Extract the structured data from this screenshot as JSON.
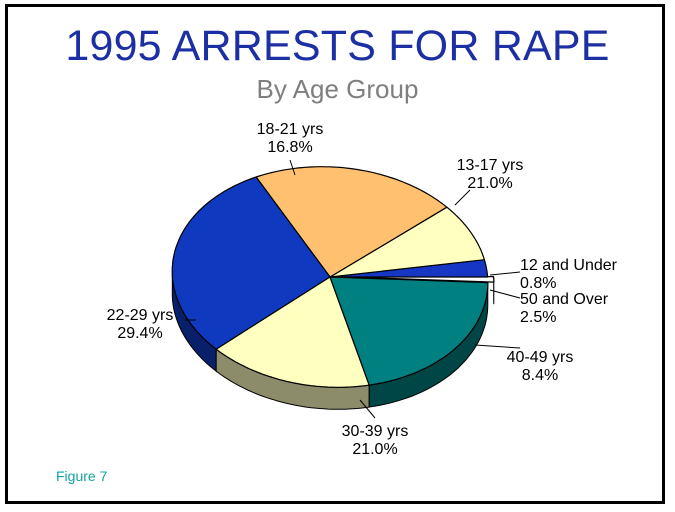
{
  "chart_data": {
    "type": "pie",
    "title": "1995 ARRESTS FOR RAPE",
    "subtitle": "By Age Group",
    "slices": [
      {
        "label": "12 and Under",
        "value": 0.8,
        "percent_label": "0.8%",
        "color": "#ffffff"
      },
      {
        "label": "50 and Over",
        "value": 2.5,
        "percent_label": "2.5%",
        "color": "#1537c4"
      },
      {
        "label": "40-49 yrs",
        "value": 8.4,
        "percent_label": "8.4%",
        "color": "#ffffc0"
      },
      {
        "label": "30-39 yrs",
        "value": 21.0,
        "percent_label": "21.0%",
        "color": "#ffc070"
      },
      {
        "label": "22-29 yrs",
        "value": 29.4,
        "percent_label": "29.4%",
        "color": "#0f3ac0"
      },
      {
        "label": "18-21 yrs",
        "value": 16.8,
        "percent_label": "16.8%",
        "color": "#ffffc0"
      },
      {
        "label": "13-17 yrs",
        "value": 21.0,
        "percent_label": "21.0%",
        "color": "#008080"
      }
    ]
  },
  "figure_label": "Figure 7",
  "colors": {
    "title": "#1c2fa3",
    "subtitle": "#7f7f7f",
    "figure_label": "#14a3a3",
    "border": "#000000"
  }
}
